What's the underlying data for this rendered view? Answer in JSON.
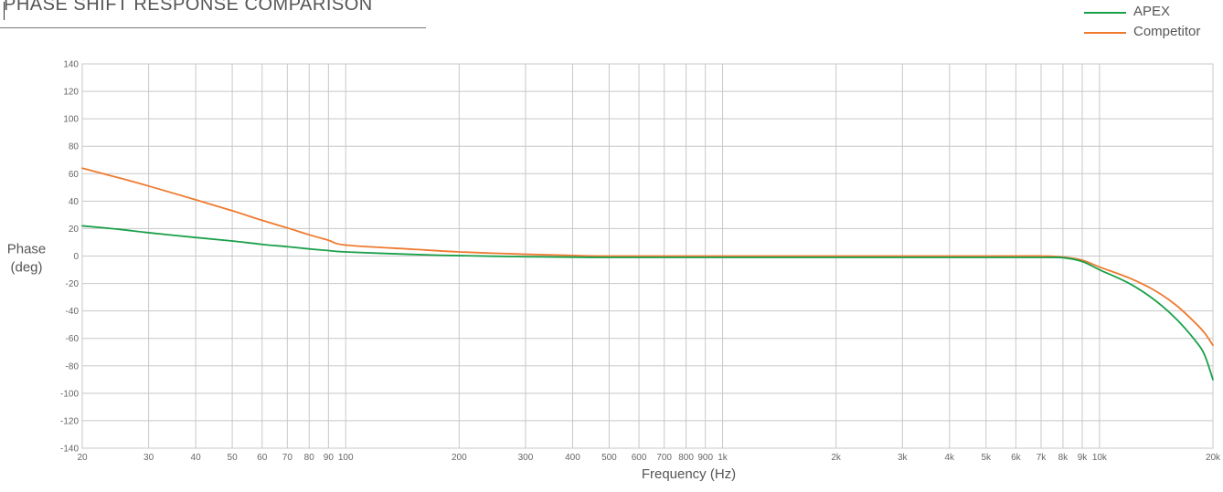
{
  "title": "PHASE SHIFT RESPONSE COMPARISON",
  "legend": [
    {
      "name": "APEX",
      "color": "#1aa04a"
    },
    {
      "name": "Competitor",
      "color": "#ef7a2f"
    }
  ],
  "chart_data": {
    "type": "line",
    "title": "PHASE SHIFT RESPONSE COMPARISON",
    "xlabel": "Frequency (Hz)",
    "ylabel": [
      "Phase",
      "(deg)"
    ],
    "x_scale": "log",
    "xlim": [
      20,
      20000
    ],
    "ylim": [
      -140,
      140
    ],
    "grid": true,
    "legend_position": "top-right",
    "x_ticks": [
      20,
      30,
      40,
      50,
      60,
      70,
      80,
      90,
      100,
      200,
      300,
      400,
      500,
      600,
      700,
      800,
      900,
      1000,
      2000,
      3000,
      4000,
      5000,
      6000,
      7000,
      8000,
      9000,
      10000,
      20000
    ],
    "x_tick_labels": [
      "20",
      "30",
      "40",
      "50",
      "60",
      "70",
      "80",
      "90",
      "100",
      "200",
      "300",
      "400",
      "500",
      "600",
      "700",
      "800",
      "900",
      "1k",
      "2k",
      "3k",
      "4k",
      "5k",
      "6k",
      "7k",
      "8k",
      "9k",
      "10k",
      "20k"
    ],
    "y_ticks": [
      140,
      120,
      100,
      80,
      60,
      40,
      20,
      0,
      -20,
      -40,
      -60,
      -80,
      -100,
      -120,
      -140
    ],
    "y_tick_labels": [
      "140",
      "120",
      "100",
      "80",
      "60",
      "40",
      "20",
      "0",
      "-20",
      "-40",
      "-60",
      "-80",
      "-100",
      "-120",
      "-140"
    ],
    "series": [
      {
        "name": "APEX",
        "color": "#1aa04a",
        "x": [
          20,
          25,
          30,
          40,
          50,
          60,
          70,
          80,
          90,
          100,
          150,
          200,
          300,
          400,
          500,
          1000,
          2000,
          5000,
          7000,
          8000,
          9000,
          10000,
          12000,
          14000,
          16000,
          18000,
          19000,
          20000
        ],
        "y": [
          22,
          19.5,
          17,
          13.5,
          11,
          8.5,
          6.8,
          5.2,
          4,
          3,
          1.2,
          0.3,
          -0.5,
          -0.8,
          -1,
          -1,
          -1,
          -1,
          -1,
          -1.2,
          -4,
          -10,
          -20,
          -32,
          -46,
          -62,
          -72,
          -90
        ]
      },
      {
        "name": "Competitor",
        "color": "#ef7a2f",
        "x": [
          20,
          25,
          30,
          40,
          50,
          60,
          70,
          80,
          90,
          100,
          150,
          200,
          300,
          400,
          500,
          1000,
          2000,
          5000,
          7000,
          8000,
          9000,
          10000,
          12000,
          14000,
          16000,
          18000,
          19000,
          20000
        ],
        "y": [
          64,
          57,
          51,
          41,
          33,
          26,
          20.5,
          15.5,
          11.5,
          8,
          5,
          3,
          1.3,
          0.4,
          0,
          0,
          0,
          0,
          0,
          -0.8,
          -3,
          -8,
          -16,
          -25,
          -36,
          -49,
          -56,
          -65
        ]
      }
    ]
  }
}
